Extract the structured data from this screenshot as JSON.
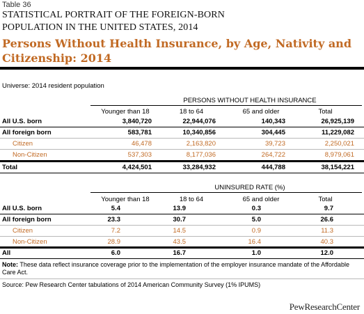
{
  "table_number": "Table 36",
  "supertitle_line1": "STATISTICAL PORTRAIT OF THE FOREIGN-BORN",
  "supertitle_line2": "POPULATION IN THE UNITED STATES, 2014",
  "title_line1": "Persons Without Health Insurance, by Age, Nativity and",
  "title_line2": "Citizenship: 2014",
  "universe": "Universe: 2014 resident population",
  "section1": {
    "header": "PERSONS WITHOUT HEALTH INSURANCE",
    "columns": [
      "Younger than 18",
      "18 to 64",
      "65 and older",
      "Total"
    ],
    "rows": [
      {
        "label": "All U.S. born",
        "values": [
          "3,840,720",
          "22,944,076",
          "140,343",
          "26,925,139"
        ]
      },
      {
        "label": "All foreign born",
        "values": [
          "583,781",
          "10,340,856",
          "304,445",
          "11,229,082"
        ]
      },
      {
        "label": "Citizen",
        "values": [
          "46,478",
          "2,163,820",
          "39,723",
          "2,250,021"
        ]
      },
      {
        "label": "Non-Citizen",
        "values": [
          "537,303",
          "8,177,036",
          "264,722",
          "8,979,061"
        ]
      },
      {
        "label": "Total",
        "values": [
          "4,424,501",
          "33,284,932",
          "444,788",
          "38,154,221"
        ]
      }
    ]
  },
  "section2": {
    "header": "UNINSURED RATE (%)",
    "columns": [
      "Younger than 18",
      "18 to 64",
      "65 and older",
      "Total"
    ],
    "rows": [
      {
        "label": "All U.S. born",
        "values": [
          "5.4",
          "13.9",
          "0.3",
          "9.7"
        ]
      },
      {
        "label": "All foreign born",
        "values": [
          "23.3",
          "30.7",
          "5.0",
          "26.6"
        ]
      },
      {
        "label": "Citizen",
        "values": [
          "7.2",
          "14.5",
          "0.9",
          "11.3"
        ]
      },
      {
        "label": "Non-Citizen",
        "values": [
          "28.9",
          "43.5",
          "16.4",
          "40.3"
        ]
      },
      {
        "label": "All",
        "values": [
          "6.0",
          "16.7",
          "1.0",
          "12.0"
        ]
      }
    ]
  },
  "note_label": "Note:",
  "note_text": " These data reflect insurance coverage prior to the implementation of the employer insurance mandate of the Affordable Care Act.",
  "source": "Source: Pew Research Center tabulations of 2014 American Community Survey (1% IPUMS)",
  "logo": "PewResearchCenter",
  "colors": {
    "accent": "#c16a24",
    "row_rule": "#b9b9b9"
  }
}
